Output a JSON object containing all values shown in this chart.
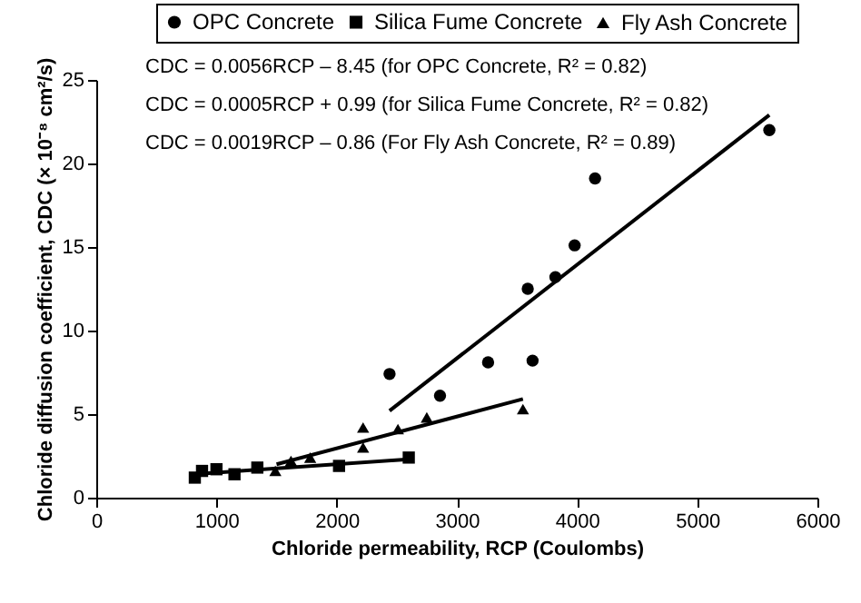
{
  "chart_data": {
    "type": "scatter",
    "xlabel": "Chloride permeability, RCP (Coulombs)",
    "ylabel": "Chloride diffusion coefficient, CDC (× 10⁻⁸ cm²/s)",
    "xlim": [
      0,
      6000
    ],
    "xticks": [
      0,
      1000,
      2000,
      3000,
      4000,
      5000,
      6000
    ],
    "ylim": [
      0,
      25
    ],
    "yticks": [
      0,
      5,
      10,
      15,
      20,
      25
    ],
    "grid": false,
    "legend": "top",
    "annotations": [
      "CDC = 0.0056RCP – 8.45 (for OPC Concrete, R² = 0.82)",
      "CDC = 0.0005RCP + 0.99 (for Silica Fume Concrete, R² = 0.82)",
      "CDC = 0.0019RCP – 0.86 (For Fly Ash Concrete, R² = 0.89)"
    ],
    "series": [
      {
        "name": "OPC Concrete",
        "marker": "circle",
        "color": "#000000",
        "x": [
          2440,
          2860,
          3260,
          3630,
          3590,
          3820,
          3980,
          4150,
          5600
        ],
        "values": [
          7.4,
          6.1,
          8.1,
          8.2,
          12.5,
          13.2,
          15.1,
          19.1,
          22.0
        ]
      },
      {
        "name": "Silica Fume Concrete",
        "marker": "square",
        "color": "#000000",
        "x": [
          820,
          880,
          1000,
          1150,
          1340,
          2020,
          2600
        ],
        "values": [
          1.2,
          1.6,
          1.7,
          1.4,
          1.8,
          1.9,
          2.4
        ]
      },
      {
        "name": "Fly Ash Concrete",
        "marker": "triangle",
        "color": "#000000",
        "x": [
          1490,
          1620,
          1780,
          2220,
          2220,
          2510,
          2750,
          3550
        ],
        "values": [
          1.6,
          2.2,
          2.4,
          4.2,
          3.0,
          4.1,
          4.8,
          5.3
        ]
      },
      {
        "type": "line",
        "marker": "none",
        "line_style": "solid",
        "color": "#000000",
        "x": [
          2440,
          5600
        ],
        "values": [
          5.2,
          22.9
        ]
      },
      {
        "type": "line",
        "marker": "none",
        "line_style": "solid",
        "color": "#000000",
        "x": [
          800,
          2600
        ],
        "values": [
          1.4,
          2.3
        ]
      },
      {
        "type": "line",
        "marker": "none",
        "line_style": "solid",
        "color": "#000000",
        "x": [
          1500,
          3550
        ],
        "values": [
          2.0,
          5.9
        ]
      }
    ]
  }
}
